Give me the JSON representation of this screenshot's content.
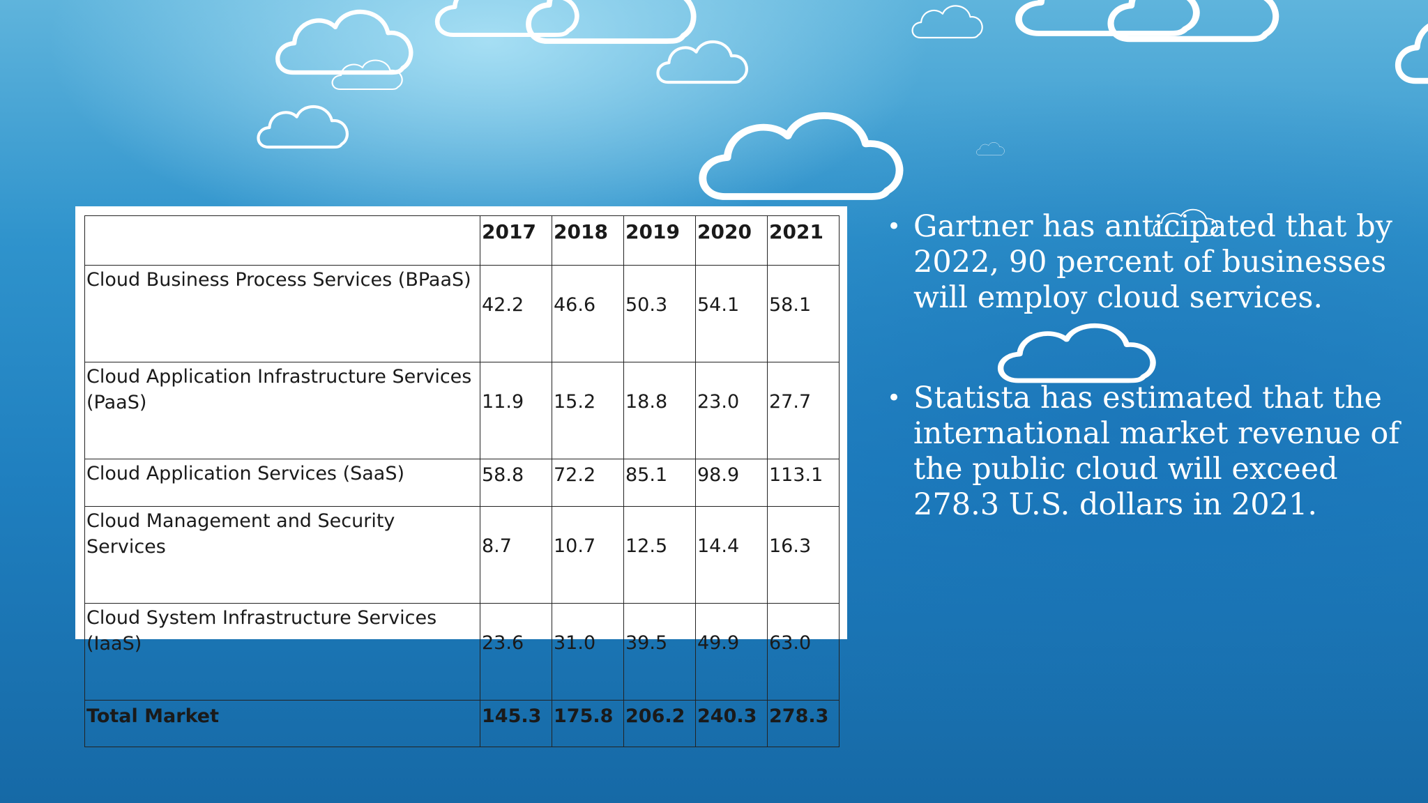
{
  "table": {
    "header": [
      "",
      "2017",
      "2018",
      "2019",
      "2020",
      "2021"
    ],
    "rows": [
      {
        "label": "Cloud Business Process Services (BPaaS)",
        "values": [
          "42.2",
          "46.6",
          "50.3",
          "54.1",
          "58.1"
        ]
      },
      {
        "label": "Cloud Application Infrastructure Services (PaaS)",
        "values": [
          "11.9",
          "15.2",
          "18.8",
          "23.0",
          "27.7"
        ]
      },
      {
        "label": "Cloud Application Services (SaaS)",
        "values": [
          "58.8",
          "72.2",
          "85.1",
          "98.9",
          "113.1"
        ]
      },
      {
        "label": "Cloud Management and Security Services",
        "values": [
          "8.7",
          "10.7",
          "12.5",
          "14.4",
          "16.3"
        ]
      },
      {
        "label": "Cloud System Infrastructure Services (IaaS)",
        "values": [
          "23.6",
          "31.0",
          "39.5",
          "49.9",
          "63.0"
        ]
      }
    ],
    "total": {
      "label": "Total Market",
      "values": [
        "145.3",
        "175.8",
        "206.2",
        "240.3",
        "278.3"
      ]
    }
  },
  "bullets": [
    {
      "bullet_char": "•",
      "text": "Gartner has anticipated that by 2022, 90 percent of businesses will employ cloud services."
    },
    {
      "bullet_char": "•",
      "text": "Statista has estimated that the international market revenue of the public cloud will exceed 278.3 U.S. dollars in 2021."
    }
  ],
  "background": {
    "decoration": "cloud-outline-icons",
    "colors": [
      "#5fb4dc",
      "#2f93cc",
      "#1669a6"
    ]
  }
}
